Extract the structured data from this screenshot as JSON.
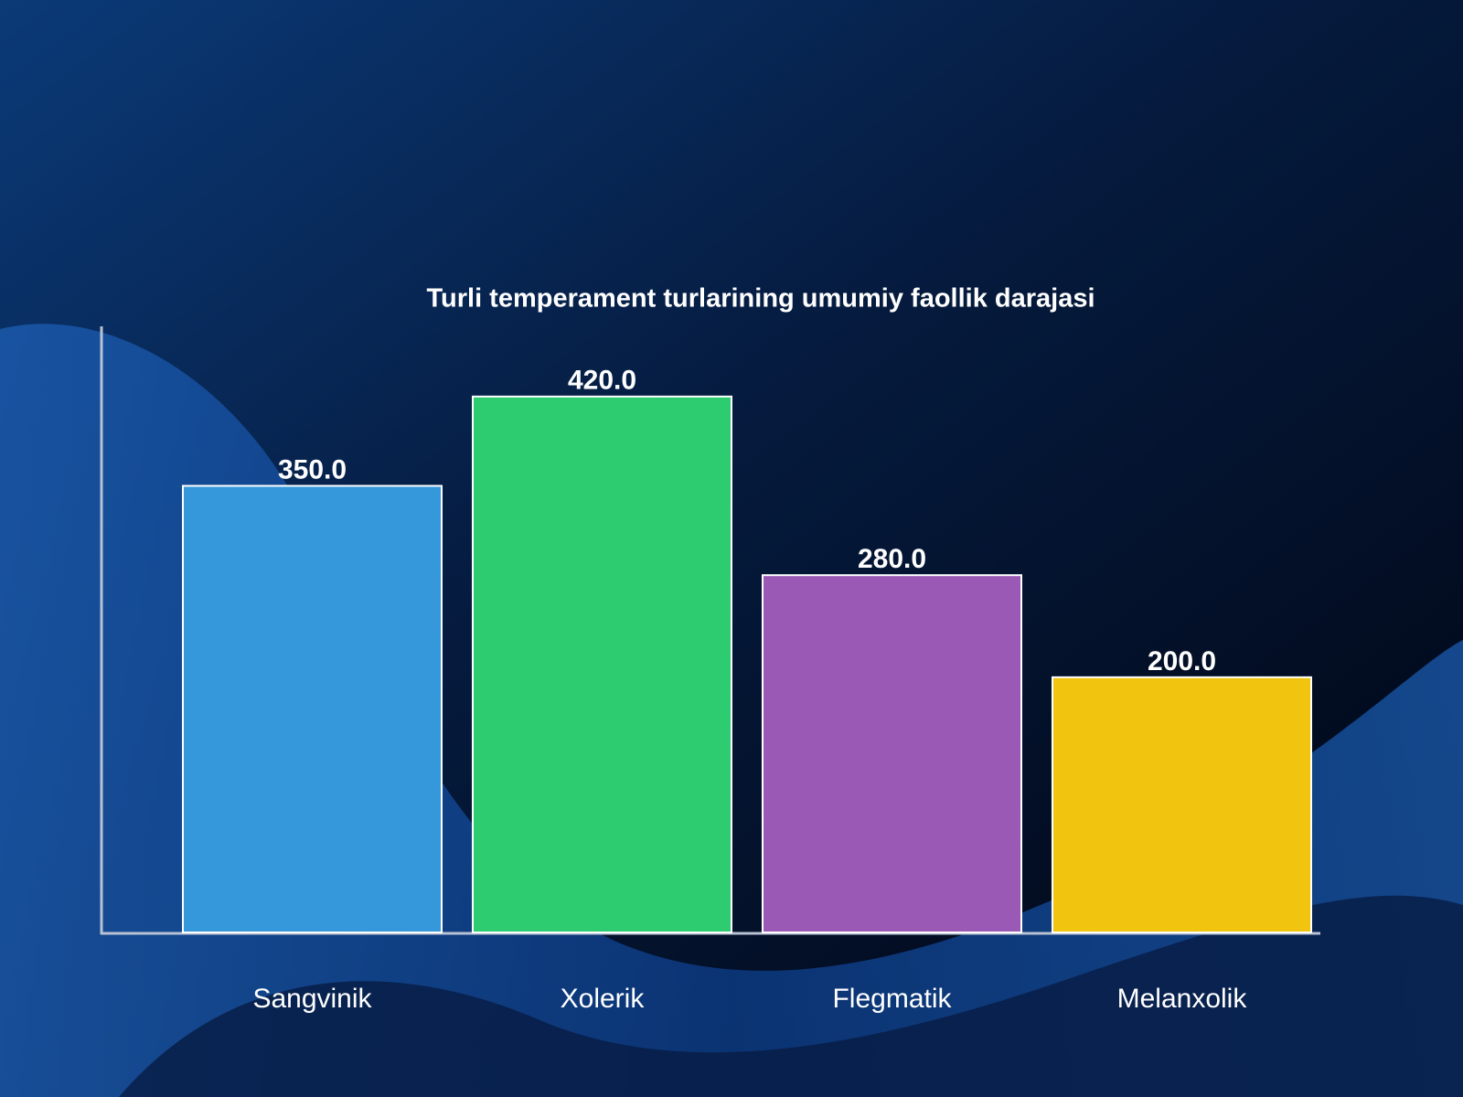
{
  "chart_data": {
    "type": "bar",
    "title": "Turli temperament turlarining umumiy faollik darajasi",
    "categories": [
      "Sangvinik",
      "Xolerik",
      "Flegmatik",
      "Melanxolik"
    ],
    "values": [
      350,
      420,
      280,
      200
    ],
    "value_labels": [
      "350.0",
      "420.0",
      "280.0",
      "200.0"
    ],
    "colors": [
      "#3498db",
      "#2ecc71",
      "#9b59b6",
      "#f1c40f"
    ],
    "ylim": [
      0,
      475
    ]
  }
}
